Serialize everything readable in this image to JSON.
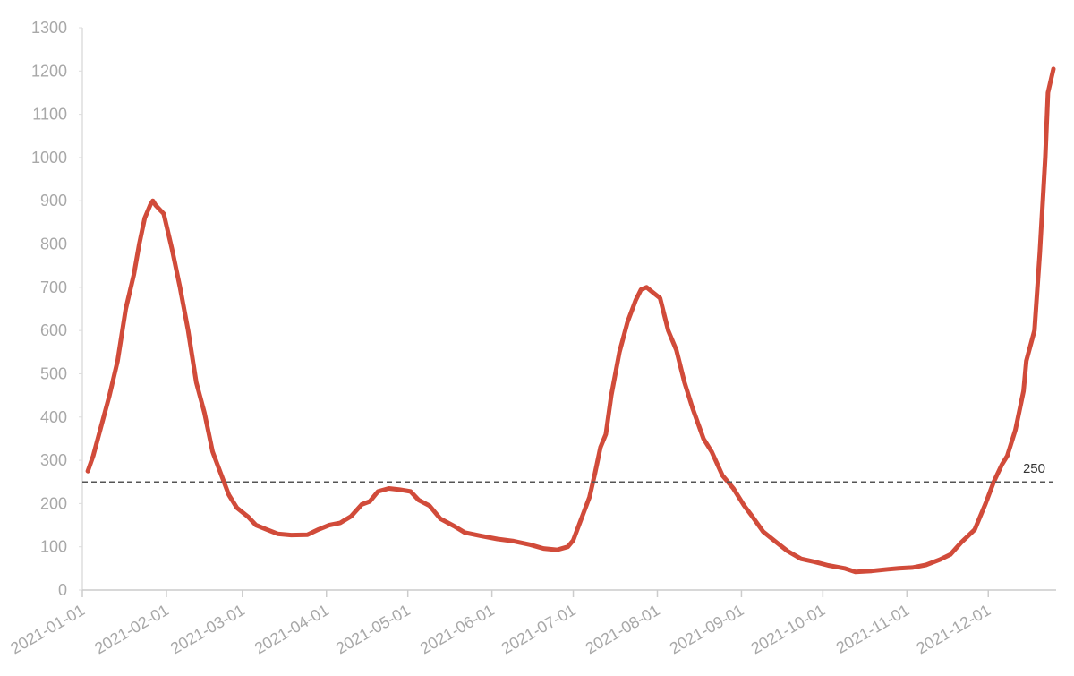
{
  "chart_data": {
    "type": "line",
    "x": [
      "2021-01-03",
      "2021-01-05",
      "2021-01-08",
      "2021-01-11",
      "2021-01-14",
      "2021-01-17",
      "2021-01-20",
      "2021-01-22",
      "2021-01-24",
      "2021-01-26",
      "2021-01-27",
      "2021-01-28",
      "2021-01-31",
      "2021-02-03",
      "2021-02-06",
      "2021-02-09",
      "2021-02-12",
      "2021-02-15",
      "2021-02-18",
      "2021-02-21",
      "2021-02-24",
      "2021-02-27",
      "2021-03-03",
      "2021-03-06",
      "2021-03-10",
      "2021-03-14",
      "2021-03-19",
      "2021-03-25",
      "2021-03-29",
      "2021-04-02",
      "2021-04-06",
      "2021-04-10",
      "2021-04-14",
      "2021-04-17",
      "2021-04-20",
      "2021-04-24",
      "2021-04-28",
      "2021-05-02",
      "2021-05-05",
      "2021-05-09",
      "2021-05-13",
      "2021-05-18",
      "2021-05-22",
      "2021-05-28",
      "2021-06-03",
      "2021-06-09",
      "2021-06-15",
      "2021-06-20",
      "2021-06-25",
      "2021-06-29",
      "2021-07-01",
      "2021-07-04",
      "2021-07-07",
      "2021-07-09",
      "2021-07-11",
      "2021-07-13",
      "2021-07-15",
      "2021-07-18",
      "2021-07-21",
      "2021-07-24",
      "2021-07-26",
      "2021-07-28",
      "2021-07-30",
      "2021-08-02",
      "2021-08-05",
      "2021-08-08",
      "2021-08-11",
      "2021-08-14",
      "2021-08-18",
      "2021-08-21",
      "2021-08-25",
      "2021-08-29",
      "2021-09-02",
      "2021-09-05",
      "2021-09-09",
      "2021-09-14",
      "2021-09-18",
      "2021-09-23",
      "2021-09-28",
      "2021-10-03",
      "2021-10-09",
      "2021-10-13",
      "2021-10-19",
      "2021-10-25",
      "2021-10-29",
      "2021-11-03",
      "2021-11-08",
      "2021-11-13",
      "2021-11-17",
      "2021-11-21",
      "2021-11-26",
      "2021-11-30",
      "2021-12-03",
      "2021-12-06",
      "2021-12-08",
      "2021-12-11",
      "2021-12-14",
      "2021-12-15",
      "2021-12-18",
      "2021-12-20",
      "2021-12-22",
      "2021-12-23",
      "2021-12-25"
    ],
    "series": [
      {
        "color": "#d14b3a",
        "values": [
          275,
          310,
          380,
          450,
          530,
          650,
          730,
          800,
          860,
          890,
          900,
          890,
          870,
          790,
          700,
          600,
          480,
          410,
          320,
          270,
          220,
          190,
          170,
          150,
          140,
          130,
          127,
          128,
          140,
          150,
          155,
          170,
          198,
          205,
          228,
          235,
          232,
          228,
          208,
          195,
          165,
          148,
          133,
          125,
          118,
          113,
          105,
          96,
          93,
          100,
          115,
          165,
          215,
          270,
          330,
          360,
          450,
          550,
          620,
          670,
          695,
          700,
          690,
          675,
          600,
          555,
          480,
          420,
          350,
          320,
          265,
          235,
          195,
          170,
          135,
          110,
          90,
          72,
          65,
          57,
          50,
          42,
          44,
          48,
          50,
          52,
          58,
          70,
          82,
          110,
          140,
          200,
          250,
          290,
          310,
          370,
          460,
          530,
          600,
          780,
          1000,
          1150,
          1205
        ]
      }
    ],
    "xlim": [
      "2021-01-01",
      "2021-12-26"
    ],
    "xticks": [
      "2021-01-01",
      "2021-02-01",
      "2021-03-01",
      "2021-04-01",
      "2021-05-01",
      "2021-06-01",
      "2021-07-01",
      "2021-08-01",
      "2021-09-01",
      "2021-10-01",
      "2021-11-01",
      "2021-12-01"
    ],
    "ylim": [
      0,
      1300
    ],
    "yticks": [
      0,
      100,
      200,
      300,
      400,
      500,
      600,
      700,
      800,
      900,
      1000,
      1100,
      1200,
      1300
    ],
    "hline": 250
  }
}
